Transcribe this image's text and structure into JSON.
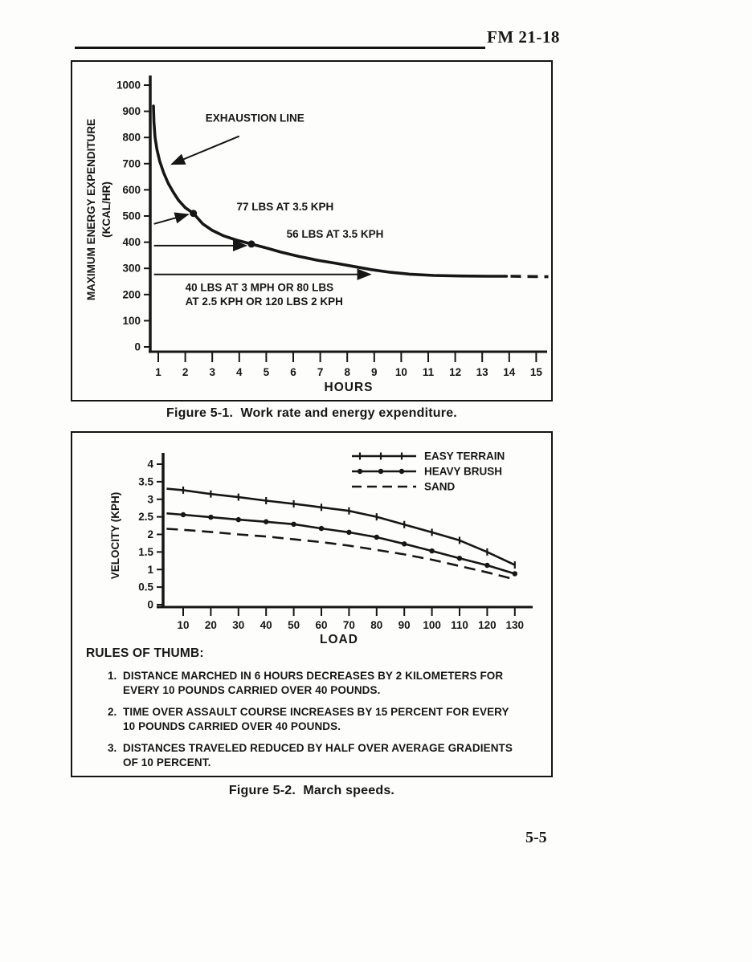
{
  "page": {
    "header_ref": "FM 21-18",
    "page_number": "5-5"
  },
  "figure1": {
    "caption": "Figure 5-1.  Work rate and energy expenditure."
  },
  "figure2": {
    "caption": "Figure 5-2.  March speeds.",
    "rules_title": "RULES OF THUMB:",
    "rules": [
      {
        "num": "1.",
        "text": "DISTANCE MARCHED IN 6 HOURS DECREASES BY 2 KILOMETERS FOR\nEVERY 10 POUNDS CARRIED OVER 40 POUNDS."
      },
      {
        "num": "2.",
        "text": "TIME OVER ASSAULT COURSE INCREASES BY 15 PERCENT FOR EVERY\n10 POUNDS CARRIED OVER 40 POUNDS."
      },
      {
        "num": "3.",
        "text": "DISTANCES TRAVELED REDUCED BY HALF OVER AVERAGE GRADIENTS\nOF 10 PERCENT."
      }
    ]
  },
  "chart_data": [
    {
      "id": "fig5-1",
      "type": "line",
      "title": "Figure 5-1. Work rate and energy expenditure.",
      "xlabel": "HOURS",
      "ylabel": "MAXIMUM ENERGY EXPENDITURE (KCAL/HR)",
      "ylabel_lines": [
        "MAXIMUM ENERGY EXPENDITURE",
        "(KCAL/HR)"
      ],
      "xlim": [
        0.8,
        15.6
      ],
      "ylim": [
        0,
        1040
      ],
      "xticks": [
        1,
        2,
        3,
        4,
        5,
        6,
        7,
        8,
        9,
        10,
        11,
        12,
        13,
        14,
        15
      ],
      "yticks": [
        0,
        100,
        200,
        300,
        400,
        500,
        600,
        700,
        800,
        900,
        1000
      ],
      "grid": false,
      "series": [
        {
          "name": "EXHAUSTION LINE",
          "style": "solid-thick",
          "points": [
            [
              0.82,
              920
            ],
            [
              0.84,
              860
            ],
            [
              0.88,
              800
            ],
            [
              0.95,
              755
            ],
            [
              1.05,
              710
            ],
            [
              1.2,
              665
            ],
            [
              1.37,
              625
            ],
            [
              1.55,
              592
            ],
            [
              1.75,
              560
            ],
            [
              2.0,
              532
            ],
            [
              2.3,
              510
            ],
            [
              2.65,
              470
            ],
            [
              3.0,
              445
            ],
            [
              3.4,
              425
            ],
            [
              3.9,
              408
            ],
            [
              4.45,
              393
            ],
            [
              5.0,
              378
            ],
            [
              5.55,
              362
            ],
            [
              6.2,
              346
            ],
            [
              6.9,
              331
            ],
            [
              7.6,
              319
            ],
            [
              8.3,
              306
            ],
            [
              8.9,
              295
            ],
            [
              9.6,
              285
            ],
            [
              10.3,
              278
            ],
            [
              11.2,
              273
            ],
            [
              12.2,
              271
            ],
            [
              13.2,
              270
            ],
            [
              13.9,
              270
            ]
          ],
          "dashed_tail": [
            [
              14.05,
              270
            ],
            [
              15.45,
              268
            ]
          ]
        }
      ],
      "dots": [
        [
          2.3,
          510
        ],
        [
          4.45,
          393
        ]
      ],
      "annotations": [
        {
          "text": "EXHAUSTION LINE",
          "x": 2.75,
          "y": 860,
          "arrow": {
            "from": [
              4.0,
              805
            ],
            "to": [
              1.5,
              698
            ]
          }
        },
        {
          "text": "77 LBS AT 3.5 KPH",
          "x": 3.9,
          "y": 522,
          "arrow": {
            "from": [
              0.84,
              470
            ],
            "to": [
              2.1,
              506
            ]
          }
        },
        {
          "text": "56 LBS AT 3.5 KPH",
          "x": 5.75,
          "y": 417,
          "arrow": {
            "from": [
              0.84,
              387
            ],
            "to": [
              4.25,
              387
            ]
          }
        },
        {
          "text": "40 LBS AT 3 MPH OR 80 LBS\nAT 2.5 KPH OR 120 LBS 2 KPH",
          "x": 2.0,
          "y": 213,
          "arrow": {
            "from": [
              0.84,
              277
            ],
            "to": [
              8.85,
              277
            ]
          }
        }
      ]
    },
    {
      "id": "fig5-2",
      "type": "line",
      "title": "Figure 5-2. March speeds.",
      "xlabel": "LOAD",
      "ylabel": "VELOCITY (KPH)",
      "xlim": [
        3,
        143
      ],
      "ylim": [
        0,
        4.15
      ],
      "xticks": [
        10,
        20,
        30,
        40,
        50,
        60,
        70,
        80,
        90,
        100,
        110,
        120,
        130
      ],
      "yticks": [
        0,
        0.5,
        1,
        1.5,
        2,
        2.5,
        3,
        3.5,
        4
      ],
      "grid": false,
      "legend_position": "top-right",
      "series": [
        {
          "name": "EASY TERRAIN",
          "style": "solid-plus",
          "points": [
            [
              4,
              3.3
            ],
            [
              10,
              3.26
            ],
            [
              20,
              3.15
            ],
            [
              30,
              3.06
            ],
            [
              40,
              2.96
            ],
            [
              50,
              2.87
            ],
            [
              60,
              2.77
            ],
            [
              70,
              2.67
            ],
            [
              80,
              2.5
            ],
            [
              90,
              2.28
            ],
            [
              100,
              2.06
            ],
            [
              110,
              1.83
            ],
            [
              120,
              1.5
            ],
            [
              130,
              1.13
            ]
          ]
        },
        {
          "name": "HEAVY BRUSH",
          "style": "solid-dot",
          "points": [
            [
              4,
              2.6
            ],
            [
              10,
              2.56
            ],
            [
              20,
              2.49
            ],
            [
              30,
              2.42
            ],
            [
              40,
              2.36
            ],
            [
              50,
              2.29
            ],
            [
              60,
              2.17
            ],
            [
              70,
              2.06
            ],
            [
              80,
              1.92
            ],
            [
              90,
              1.73
            ],
            [
              100,
              1.53
            ],
            [
              110,
              1.32
            ],
            [
              120,
              1.12
            ],
            [
              130,
              0.88
            ]
          ]
        },
        {
          "name": "SAND",
          "style": "dashed",
          "points": [
            [
              4,
              2.16
            ],
            [
              10,
              2.13
            ],
            [
              20,
              2.07
            ],
            [
              30,
              2.0
            ],
            [
              40,
              1.94
            ],
            [
              50,
              1.86
            ],
            [
              60,
              1.78
            ],
            [
              70,
              1.68
            ],
            [
              80,
              1.56
            ],
            [
              90,
              1.43
            ],
            [
              100,
              1.28
            ],
            [
              110,
              1.1
            ],
            [
              120,
              0.92
            ],
            [
              130,
              0.72
            ]
          ]
        }
      ]
    }
  ]
}
